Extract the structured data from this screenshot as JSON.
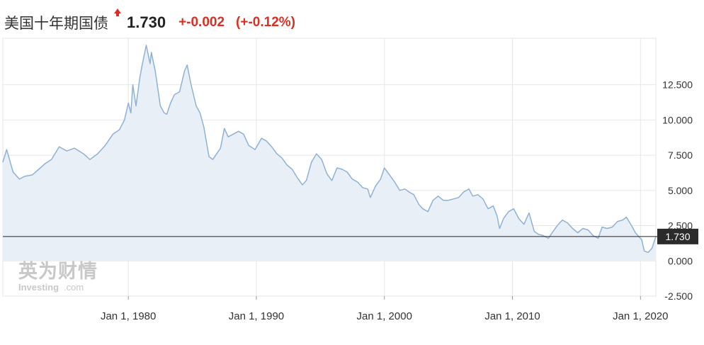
{
  "header": {
    "title": "美国十年期国债",
    "price": "1.730",
    "change": "+-0.002",
    "change_pct": "(+-0.12%)"
  },
  "colors": {
    "line": "#8fb1d4",
    "fill": "#e9eff7",
    "down": "#d93025",
    "grid": "#e6e6e6",
    "current_line": "#222222",
    "current_label_bg": "#2b2b2b"
  },
  "watermark": {
    "brand_cn": "英为财情",
    "brand_en": "Investing",
    "brand_en_suffix": ".com"
  },
  "current_label": "1.730",
  "chart_data": {
    "type": "area",
    "x_tick_labels": [
      "Jan 1, 1980",
      "Jan 1, 1990",
      "Jan 1, 2000",
      "Jan 1, 2010",
      "Jan 1, 2020"
    ],
    "x_ticks": [
      1980,
      1990,
      2000,
      2010,
      2020
    ],
    "y_ticks": [
      -2.5,
      0,
      2.5,
      5,
      7.5,
      10,
      12.5
    ],
    "y_tick_labels": [
      "-2.500",
      "0.000",
      "2.500",
      "5.000",
      "7.500",
      "10.000",
      "12.500"
    ],
    "xlim": [
      1970.2,
      2021.2
    ],
    "ylim": [
      -2.5,
      15.8
    ],
    "current_value": 1.73,
    "series": [
      {
        "x": [
          1970.2,
          1970.5,
          1971.0,
          1971.5,
          1971.9,
          1972.5,
          1973.0,
          1973.5,
          1974.0,
          1974.6,
          1975.2,
          1975.8,
          1976.5,
          1977.0,
          1977.6,
          1978.2,
          1978.8,
          1979.3,
          1979.7,
          1980.0,
          1980.2,
          1980.35,
          1980.6,
          1980.9,
          1981.1,
          1981.4,
          1981.7,
          1981.8,
          1982.1,
          1982.5,
          1982.8,
          1983.0,
          1983.3,
          1983.6,
          1984.0,
          1984.4,
          1984.6,
          1984.9,
          1985.3,
          1985.6,
          1985.9,
          1986.3,
          1986.6,
          1986.9,
          1987.2,
          1987.5,
          1987.8,
          1988.2,
          1988.6,
          1989.0,
          1989.4,
          1989.9,
          1990.4,
          1990.8,
          1991.2,
          1991.6,
          1992.0,
          1992.4,
          1992.8,
          1993.2,
          1993.6,
          1993.9,
          1994.3,
          1994.7,
          1995.1,
          1995.5,
          1995.9,
          1996.3,
          1996.7,
          1997.1,
          1997.5,
          1997.9,
          1998.3,
          1998.7,
          1998.9,
          1999.3,
          1999.7,
          2000.0,
          2000.4,
          2000.8,
          2001.2,
          2001.6,
          2001.9,
          2002.3,
          2002.7,
          2003.0,
          2003.4,
          2003.8,
          2004.2,
          2004.6,
          2005.0,
          2005.4,
          2005.8,
          2006.2,
          2006.6,
          2006.9,
          2007.3,
          2007.7,
          2008.1,
          2008.5,
          2008.8,
          2009.0,
          2009.3,
          2009.7,
          2010.1,
          2010.5,
          2010.9,
          2011.3,
          2011.7,
          2012.0,
          2012.4,
          2012.8,
          2013.1,
          2013.5,
          2013.9,
          2014.3,
          2014.7,
          2015.1,
          2015.5,
          2015.9,
          2016.3,
          2016.7,
          2017.0,
          2017.4,
          2017.8,
          2018.2,
          2018.6,
          2018.9,
          2019.3,
          2019.6,
          2019.9,
          2020.1,
          2020.3,
          2020.6,
          2020.9,
          2021.2
        ],
        "y": [
          7.0,
          7.9,
          6.3,
          5.8,
          6.0,
          6.1,
          6.5,
          6.9,
          7.2,
          8.1,
          7.8,
          8.0,
          7.6,
          7.2,
          7.6,
          8.2,
          9.0,
          9.3,
          10.0,
          11.2,
          10.5,
          12.5,
          11.0,
          13.0,
          14.0,
          15.3,
          14.0,
          14.8,
          13.5,
          11.0,
          10.5,
          10.4,
          11.2,
          11.8,
          12.0,
          13.5,
          13.9,
          12.5,
          11.0,
          10.5,
          9.5,
          7.4,
          7.2,
          7.6,
          8.0,
          9.4,
          8.8,
          9.0,
          9.2,
          9.0,
          8.2,
          7.9,
          8.7,
          8.5,
          8.1,
          7.6,
          7.3,
          6.8,
          6.5,
          5.9,
          5.4,
          5.7,
          7.0,
          7.6,
          7.2,
          6.2,
          5.7,
          6.6,
          6.5,
          6.3,
          5.8,
          5.6,
          5.2,
          5.1,
          4.5,
          5.3,
          5.8,
          6.6,
          6.1,
          5.6,
          5.0,
          5.1,
          4.9,
          4.7,
          4.0,
          3.7,
          3.5,
          4.3,
          4.6,
          4.3,
          4.3,
          4.4,
          4.5,
          4.9,
          5.1,
          4.6,
          4.7,
          4.4,
          3.7,
          3.9,
          3.2,
          2.3,
          3.0,
          3.5,
          3.7,
          3.0,
          2.6,
          3.4,
          2.1,
          1.9,
          1.8,
          1.6,
          2.0,
          2.5,
          2.9,
          2.7,
          2.3,
          2.0,
          2.3,
          2.2,
          1.8,
          1.6,
          2.4,
          2.3,
          2.4,
          2.8,
          2.9,
          3.1,
          2.5,
          2.0,
          1.7,
          1.5,
          0.7,
          0.6,
          0.9,
          1.73
        ]
      }
    ]
  }
}
